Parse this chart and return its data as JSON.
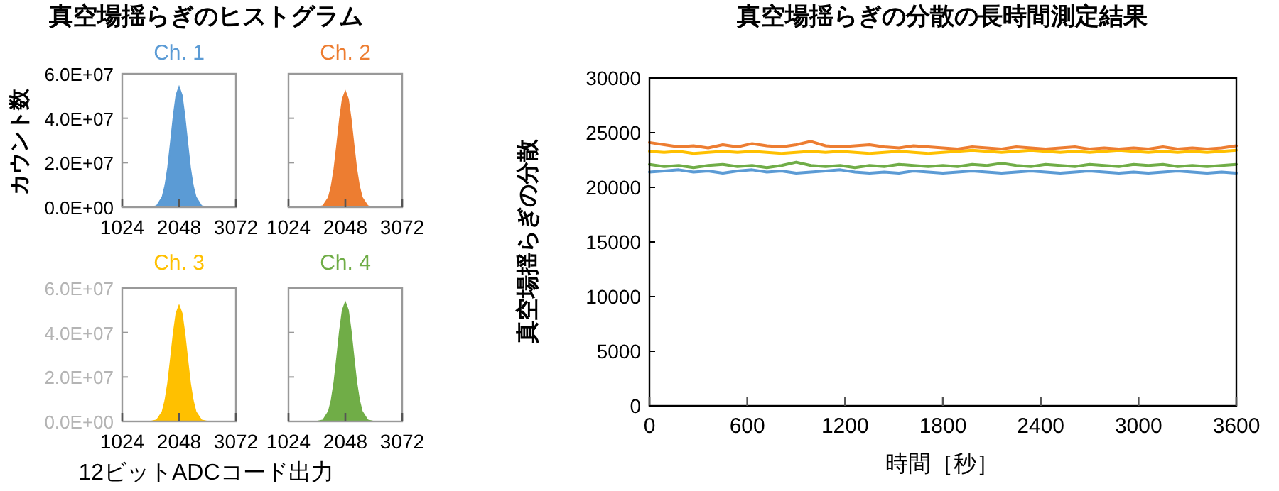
{
  "chart_data": [
    {
      "type": "area",
      "title": "真空場揺らぎのヒストグラム",
      "ylabel": "カウント数",
      "xlim": [
        1024,
        3072
      ],
      "ylim": [
        0,
        60000000
      ],
      "xticks": [
        1024,
        2048,
        3072
      ],
      "yticks": [
        {
          "value": 0,
          "label": "0.0E+00"
        },
        {
          "value": 20000000,
          "label": "2.0E+07"
        },
        {
          "value": 40000000,
          "label": "4.0E+07"
        },
        {
          "value": 60000000,
          "label": "6.0E+07"
        }
      ],
      "grid": false,
      "series": [
        {
          "name": "Ch. 1",
          "color": "#5b9bd5",
          "x": [
            1548,
            1648,
            1748,
            1798,
            1848,
            1898,
            1948,
            1998,
            2048,
            2098,
            2148,
            2198,
            2248,
            2298,
            2348,
            2448,
            2548
          ],
          "values": [
            0,
            600000,
            4600000,
            9700000,
            17800000,
            29200000,
            41000000,
            50400000,
            54000000,
            50400000,
            41000000,
            29200000,
            17800000,
            9700000,
            4600000,
            600000,
            0
          ]
        }
      ]
    },
    {
      "type": "area",
      "xlim": [
        1024,
        3072
      ],
      "ylim": [
        0,
        60000000
      ],
      "xticks": [
        1024,
        2048,
        3072
      ],
      "yticks": [
        {
          "value": 0,
          "label": null
        },
        {
          "value": 20000000,
          "label": null
        },
        {
          "value": 40000000,
          "label": null
        },
        {
          "value": 60000000,
          "label": null
        }
      ],
      "tick_labels": "x",
      "grid": false,
      "series": [
        {
          "name": "Ch. 2",
          "color": "#ed7d31",
          "x": [
            1548,
            1648,
            1748,
            1798,
            1848,
            1898,
            1948,
            1998,
            2048,
            2098,
            2148,
            2198,
            2248,
            2298,
            2348,
            2448,
            2548
          ],
          "values": [
            0,
            600000,
            4400000,
            9400000,
            17200000,
            28100000,
            39500000,
            48600000,
            52000000,
            48600000,
            39500000,
            28100000,
            17200000,
            9400000,
            4400000,
            600000,
            0
          ]
        }
      ]
    },
    {
      "type": "area",
      "xlabel": "12ビットADCコード出力",
      "xlim": [
        1024,
        3072
      ],
      "ylim": [
        0,
        60000000
      ],
      "xticks": [
        1024,
        2048,
        3072
      ],
      "yticks": [
        {
          "value": 0,
          "label": "0.0E+00"
        },
        {
          "value": 20000000,
          "label": "2.0E+07"
        },
        {
          "value": 40000000,
          "label": "4.0E+07"
        },
        {
          "value": 60000000,
          "label": "6.0E+07"
        }
      ],
      "grid": false,
      "series": [
        {
          "name": "Ch. 3",
          "color": "#ffc000",
          "x": [
            1548,
            1648,
            1748,
            1798,
            1848,
            1898,
            1948,
            1998,
            2048,
            2098,
            2148,
            2198,
            2248,
            2298,
            2348,
            2448,
            2548
          ],
          "values": [
            0,
            600000,
            4400000,
            9400000,
            17200000,
            28100000,
            39500000,
            48600000,
            52000000,
            48600000,
            39500000,
            28100000,
            17200000,
            9400000,
            4400000,
            600000,
            0
          ]
        }
      ]
    },
    {
      "type": "area",
      "xlim": [
        1024,
        3072
      ],
      "ylim": [
        0,
        60000000
      ],
      "xticks": [
        1024,
        2048,
        3072
      ],
      "yticks": [
        {
          "value": 0,
          "label": null
        },
        {
          "value": 20000000,
          "label": null
        },
        {
          "value": 40000000,
          "label": null
        },
        {
          "value": 60000000,
          "label": null
        }
      ],
      "tick_labels": "x",
      "grid": false,
      "series": [
        {
          "name": "Ch. 4",
          "color": "#70ad47",
          "x": [
            1548,
            1648,
            1748,
            1798,
            1848,
            1898,
            1948,
            1998,
            2048,
            2098,
            2148,
            2198,
            2248,
            2298,
            2348,
            2448,
            2548
          ],
          "values": [
            0,
            600000,
            4500000,
            9600000,
            17700000,
            28900000,
            40700000,
            50000000,
            53500000,
            50000000,
            40700000,
            28900000,
            17700000,
            9600000,
            4500000,
            600000,
            0
          ]
        }
      ]
    },
    {
      "type": "line",
      "title": "真空場揺らぎの分散の長時間測定結果",
      "xlabel": "時間［秒］",
      "ylabel": "真空場揺らぎの分散",
      "xlim": [
        0,
        3600
      ],
      "ylim": [
        0,
        30000
      ],
      "xticks": [
        0,
        600,
        1200,
        1800,
        2400,
        3000,
        3600
      ],
      "yticks": [
        0,
        5000,
        10000,
        15000,
        20000,
        25000,
        30000
      ],
      "grid": false,
      "x": [
        0,
        90,
        180,
        270,
        360,
        450,
        540,
        630,
        720,
        810,
        900,
        990,
        1080,
        1170,
        1260,
        1350,
        1440,
        1530,
        1620,
        1710,
        1800,
        1890,
        1980,
        2070,
        2160,
        2250,
        2340,
        2430,
        2520,
        2610,
        2700,
        2790,
        2880,
        2970,
        3060,
        3150,
        3240,
        3330,
        3420,
        3510,
        3600
      ],
      "series": [
        {
          "color": "#5b9bd5",
          "values": [
            21400,
            21500,
            21600,
            21400,
            21500,
            21300,
            21500,
            21600,
            21400,
            21500,
            21300,
            21400,
            21500,
            21600,
            21400,
            21300,
            21400,
            21300,
            21500,
            21400,
            21300,
            21400,
            21500,
            21400,
            21300,
            21400,
            21500,
            21400,
            21300,
            21400,
            21500,
            21400,
            21300,
            21400,
            21300,
            21400,
            21500,
            21400,
            21300,
            21400,
            21300
          ]
        },
        {
          "color": "#70ad47",
          "values": [
            22100,
            21900,
            22000,
            21800,
            22000,
            22100,
            21900,
            22000,
            21800,
            22000,
            22300,
            22000,
            21900,
            22000,
            21800,
            22000,
            21900,
            22100,
            22000,
            21900,
            22000,
            21900,
            22100,
            22000,
            22200,
            22000,
            21900,
            22100,
            22000,
            21900,
            22100,
            22000,
            21900,
            22100,
            22000,
            22100,
            21900,
            22000,
            21900,
            22000,
            22100
          ]
        },
        {
          "color": "#ffc000",
          "values": [
            23300,
            23200,
            23300,
            23100,
            23200,
            23300,
            23200,
            23300,
            23200,
            23100,
            23200,
            23300,
            23200,
            23300,
            23200,
            23100,
            23200,
            23300,
            23200,
            23100,
            23200,
            23300,
            23400,
            23300,
            23200,
            23300,
            23400,
            23300,
            23200,
            23300,
            23200,
            23300,
            23400,
            23300,
            23200,
            23300,
            23200,
            23300,
            23200,
            23300,
            23400
          ]
        },
        {
          "color": "#ed7d31",
          "values": [
            24100,
            23900,
            23700,
            23800,
            23600,
            23900,
            23700,
            24000,
            23800,
            23700,
            23900,
            24200,
            23800,
            23700,
            23800,
            23900,
            23700,
            23600,
            23800,
            23700,
            23600,
            23500,
            23700,
            23600,
            23500,
            23700,
            23600,
            23500,
            23600,
            23700,
            23500,
            23600,
            23500,
            23600,
            23500,
            23700,
            23500,
            23600,
            23500,
            23600,
            23800
          ]
        }
      ]
    }
  ]
}
